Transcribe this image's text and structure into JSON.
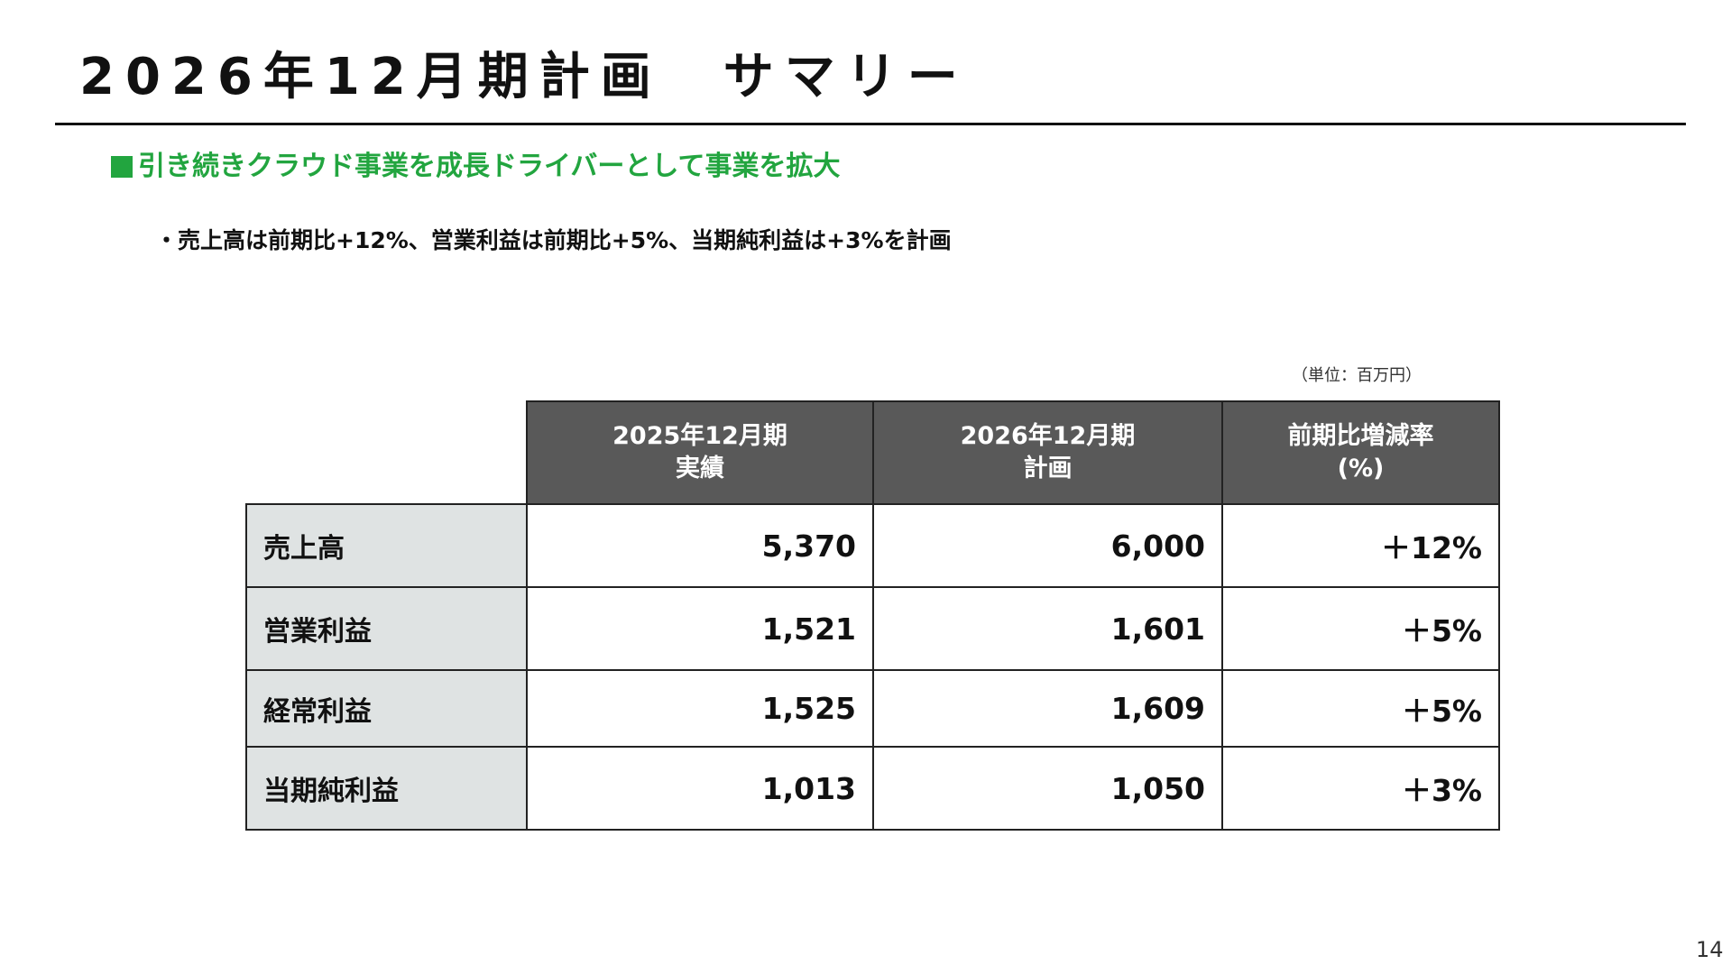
{
  "title": "2026年12月期計画　サマリー",
  "subheading": "引き続きクラウド事業を成長ドライバーとして事業を拡大",
  "bullet": "・売上高は前期比+12%、営業利益は前期比+5%、当期純利益は+3%を計画",
  "unit_note": "（単位：百万円）",
  "table": {
    "columns": [
      {
        "line1": "2025年12月期",
        "line2": "実績"
      },
      {
        "line1": "2026年12月期",
        "line2": "計画"
      },
      {
        "line1": "前期比増減率",
        "line2": "(%)"
      }
    ],
    "rows": [
      {
        "label": "売上高",
        "actual": "5,370",
        "plan": "6,000",
        "change": "＋12%"
      },
      {
        "label": "営業利益",
        "actual": "1,521",
        "plan": "1,601",
        "change": "＋5%"
      },
      {
        "label": "経常利益",
        "actual": "1,525",
        "plan": "1,609",
        "change": "＋5%"
      },
      {
        "label": "当期純利益",
        "actual": "1,013",
        "plan": "1,050",
        "change": "＋3%"
      }
    ]
  },
  "page_number": "14",
  "colors": {
    "accent_green": "#22a53f",
    "header_gray": "#595959",
    "row_label_gray": "#dfe3e3"
  }
}
